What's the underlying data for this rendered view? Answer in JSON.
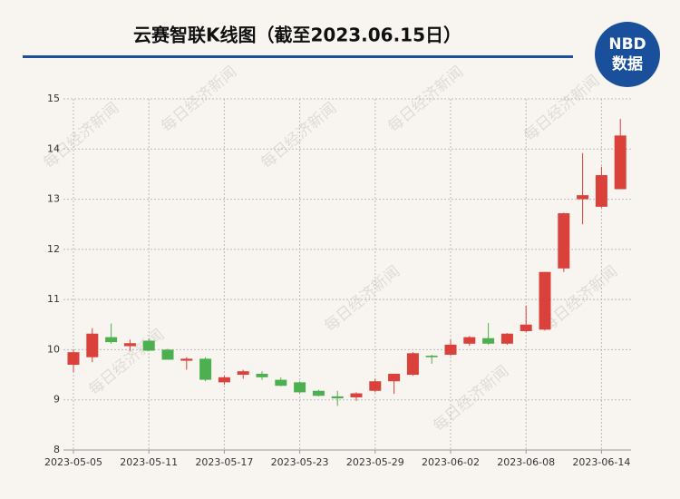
{
  "chart_data": {
    "type": "candlestick",
    "title": "云赛智联K线图（截至2023.06.15日）",
    "logo": {
      "top": "NBD",
      "bottom": "数据"
    },
    "watermark": "每日经济新闻",
    "categories": [
      "2023-05-05",
      null,
      null,
      null,
      "2023-05-11",
      null,
      null,
      null,
      "2023-05-17",
      null,
      null,
      null,
      "2023-05-23",
      null,
      null,
      null,
      "2023-05-29",
      null,
      null,
      null,
      "2023-06-02",
      null,
      null,
      null,
      "2023-06-08",
      null,
      null,
      null,
      "2023-06-14",
      null
    ],
    "open": [
      9.7,
      9.85,
      10.25,
      10.07,
      10.18,
      10.0,
      9.78,
      9.82,
      9.35,
      9.5,
      9.52,
      9.4,
      9.35,
      9.18,
      9.07,
      9.05,
      9.18,
      9.37,
      9.5,
      9.88,
      9.9,
      10.12,
      10.23,
      10.12,
      10.37,
      10.4,
      11.62,
      13.0,
      12.85,
      13.2
    ],
    "high": [
      10.0,
      10.43,
      10.52,
      10.2,
      10.22,
      10.02,
      9.85,
      9.85,
      9.48,
      9.6,
      9.57,
      9.45,
      9.37,
      9.2,
      9.18,
      9.15,
      9.42,
      9.52,
      9.95,
      9.9,
      10.2,
      10.27,
      10.53,
      10.33,
      10.88,
      11.55,
      12.73,
      13.92,
      13.65,
      14.6
    ],
    "low": [
      9.55,
      9.75,
      10.12,
      9.98,
      9.97,
      9.8,
      9.6,
      9.37,
      9.3,
      9.42,
      9.4,
      9.27,
      9.13,
      9.07,
      8.88,
      8.98,
      9.15,
      9.12,
      9.48,
      9.72,
      9.88,
      10.08,
      10.1,
      10.1,
      10.35,
      10.38,
      11.55,
      12.5,
      12.83,
      13.2
    ],
    "close": [
      9.95,
      10.32,
      10.15,
      10.13,
      9.98,
      9.8,
      9.82,
      9.4,
      9.45,
      9.57,
      9.45,
      9.28,
      9.15,
      9.08,
      9.03,
      9.13,
      9.37,
      9.52,
      9.93,
      9.85,
      10.1,
      10.25,
      10.12,
      10.32,
      10.5,
      11.55,
      12.72,
      13.08,
      13.48,
      14.27
    ],
    "up_color": "#d9413a",
    "down_color": "#4caf50",
    "ylim": [
      8,
      15
    ],
    "yticks": [
      8,
      9,
      10,
      11,
      12,
      13,
      14,
      15
    ],
    "grid": true
  }
}
